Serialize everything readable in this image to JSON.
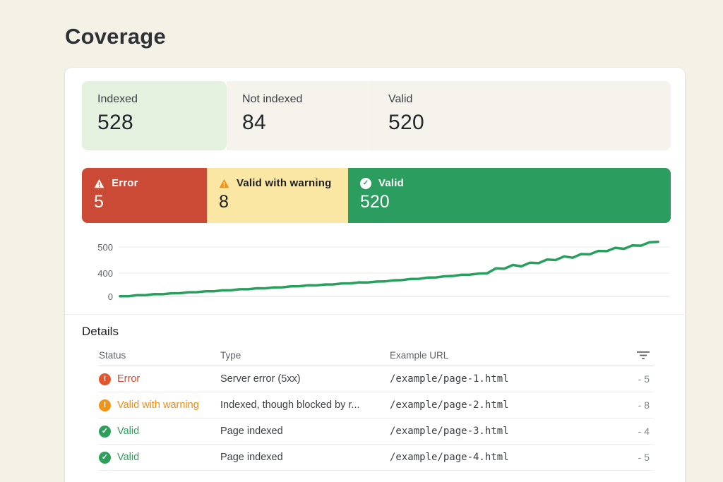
{
  "page": {
    "title": "Coverage"
  },
  "summary_tabs": [
    {
      "label": "Indexed",
      "value": "528"
    },
    {
      "label": "Not indexed",
      "value": "84"
    },
    {
      "label": "Valid",
      "value": "520"
    }
  ],
  "status_bars": [
    {
      "label": "Error",
      "value": "5",
      "icon": "warning-triangle-icon",
      "color": "#cb4a36"
    },
    {
      "label": "Valid with warning",
      "value": "8",
      "icon": "warning-triangle-icon",
      "color": "#fbe7a4"
    },
    {
      "label": "Valid",
      "value": "520",
      "icon": "check-circle-icon",
      "color": "#2b9d5e"
    }
  ],
  "chart_data": {
    "type": "line",
    "title": "",
    "xlabel": "",
    "ylabel": "",
    "legend": "none",
    "grid": "horizontal",
    "ylim": [
      0,
      520
    ],
    "yticks": [
      {
        "label": "500",
        "value": 500
      },
      {
        "label": "400",
        "value": 400
      },
      {
        "label": "0",
        "value": 0
      }
    ],
    "series": [
      {
        "name": "Valid",
        "color": "#27a05d",
        "values": [
          3,
          4,
          21,
          22,
          39,
          37,
          53,
          55,
          71,
          73,
          89,
          87,
          104,
          105,
          122,
          123,
          140,
          138,
          154,
          156,
          172,
          174,
          190,
          189,
          205,
          206,
          223,
          224,
          241,
          239,
          255,
          257,
          275,
          280,
          300,
          302,
          322,
          326,
          346,
          351,
          371,
          373,
          393,
          398,
          418,
          417,
          431,
          426,
          440,
          438,
          452,
          450,
          464,
          459,
          473,
          472,
          485,
          484,
          497,
          493,
          506,
          505,
          518,
          520
        ]
      }
    ]
  },
  "details": {
    "heading": "Details",
    "columns": {
      "status": "Status",
      "type": "Type",
      "url": "Example URL"
    },
    "filter_icon": "filter-list-icon",
    "rows": [
      {
        "status": "Error",
        "type": "Server error (5xx)",
        "url": "/example/page-1.html",
        "count": "- 5"
      },
      {
        "status": "Valid with warning",
        "type": "Indexed, though blocked by r...",
        "url": "/example/page-2.html",
        "count": "- 8"
      },
      {
        "status": "Valid",
        "type": "Page indexed",
        "url": "/example/page-3.html",
        "count": "- 4"
      },
      {
        "status": "Valid",
        "type": "Page indexed",
        "url": "/example/page-4.html",
        "count": "- 5"
      }
    ]
  },
  "colors": {
    "page_background": "#f4f1e7",
    "card_background": "#ffffff",
    "tab_selected_green": "#e4f1df",
    "tab_gray": "#f5f3ec",
    "error_red": "#cb4a36",
    "warning_yellow": "#fbe7a4",
    "warning_orange": "#f39315",
    "valid_green": "#2b9d5e",
    "chart_line_green": "#27a05d",
    "muted_text": "#5f6368"
  }
}
